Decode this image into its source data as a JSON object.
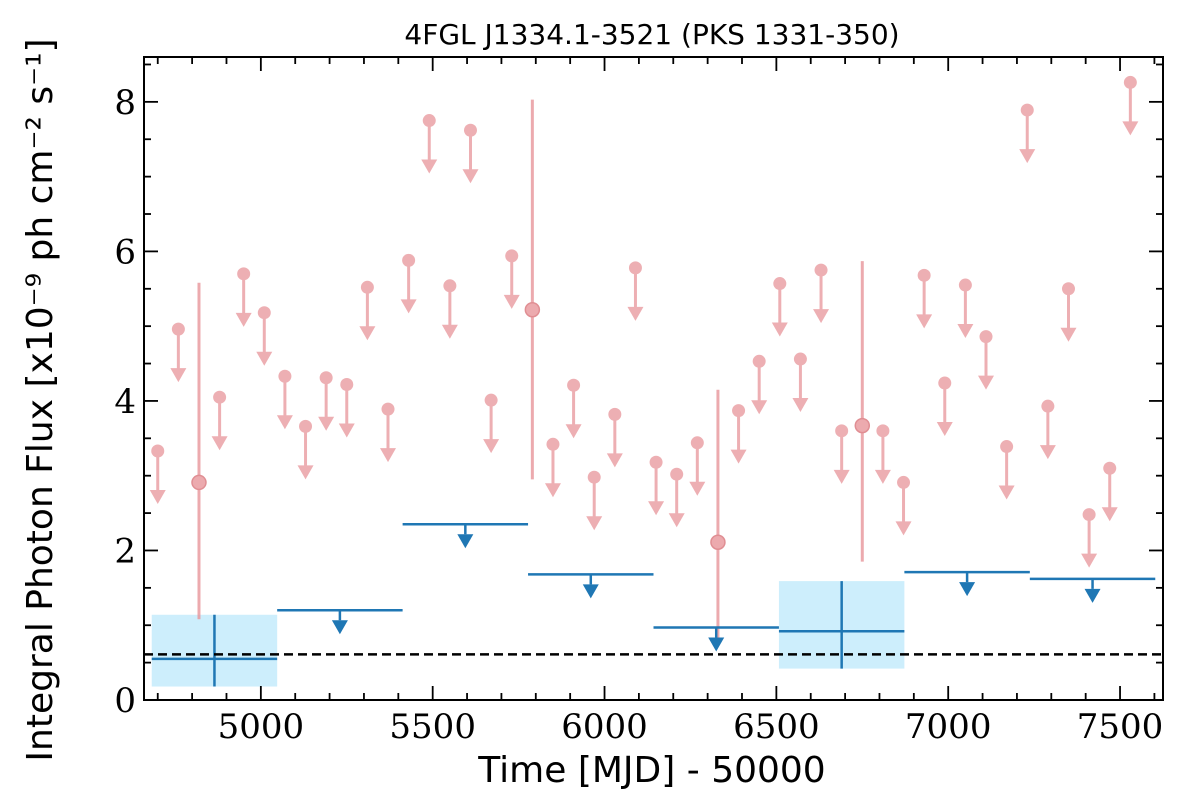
{
  "chart_data": {
    "type": "scatter",
    "title": "4FGL J1334.1-3521 (PKS 1331-350)",
    "xlabel": "Time [MJD] - 50000",
    "ylabel": "Integral Photon Flux [x10⁻⁹ ph cm⁻² s⁻¹]",
    "xlim": [
      4660,
      7625
    ],
    "ylim": [
      0,
      8.6
    ],
    "xticks": [
      5000,
      5500,
      6000,
      6500,
      7000,
      7500
    ],
    "yticks": [
      0,
      2,
      4,
      6,
      8
    ],
    "grid": false,
    "colors": {
      "short_bins": "#e8959a",
      "long_bins": "#1f77b4",
      "long_bins_fill": "#cdeefc",
      "reference_line": "#000000"
    },
    "reference_line": {
      "y": 0.61,
      "style": "dashed"
    },
    "series": [
      {
        "upper_limits": [
          [
            4700,
            3.33
          ],
          [
            4760,
            4.96
          ],
          [
            4880,
            4.05
          ],
          [
            4950,
            5.7
          ],
          [
            5010,
            5.18
          ],
          [
            5070,
            4.33
          ],
          [
            5130,
            3.66
          ],
          [
            5190,
            4.31
          ],
          [
            5250,
            4.22
          ],
          [
            5310,
            5.52
          ],
          [
            5370,
            3.89
          ],
          [
            5430,
            5.88
          ],
          [
            5490,
            7.75
          ],
          [
            5550,
            5.54
          ],
          [
            5610,
            7.62
          ],
          [
            5670,
            4.01
          ],
          [
            5730,
            5.94
          ],
          [
            5850,
            3.42
          ],
          [
            5910,
            4.21
          ],
          [
            5970,
            2.98
          ],
          [
            6030,
            3.82
          ],
          [
            6090,
            5.78
          ],
          [
            6150,
            3.18
          ],
          [
            6210,
            3.02
          ],
          [
            6270,
            3.44
          ],
          [
            6390,
            3.87
          ],
          [
            6450,
            4.53
          ],
          [
            6510,
            5.57
          ],
          [
            6570,
            4.56
          ],
          [
            6630,
            5.75
          ],
          [
            6690,
            3.6
          ],
          [
            6810,
            3.6
          ],
          [
            6870,
            2.91
          ],
          [
            6930,
            5.68
          ],
          [
            6990,
            4.24
          ],
          [
            7050,
            5.55
          ],
          [
            7110,
            4.86
          ],
          [
            7170,
            3.39
          ],
          [
            7230,
            7.89
          ],
          [
            7290,
            3.93
          ],
          [
            7350,
            5.5
          ],
          [
            7410,
            2.48
          ],
          [
            7470,
            3.1
          ],
          [
            7530,
            8.26
          ]
        ],
        "detections": [
          {
            "x": 4820,
            "y": 2.91,
            "ylow": 1.08,
            "yhigh": 5.58
          },
          {
            "x": 5790,
            "y": 5.22,
            "ylow": 2.95,
            "yhigh": 8.03
          },
          {
            "x": 6330,
            "y": 2.11,
            "ylow": 0.8,
            "yhigh": 4.15
          },
          {
            "x": 6750,
            "y": 3.67,
            "ylow": 1.85,
            "yhigh": 5.87
          }
        ]
      },
      {
        "bin_width": 365,
        "upper_limits": [
          [
            5230,
            1.2
          ],
          [
            5595,
            2.35
          ],
          [
            5960,
            1.68
          ],
          [
            6325,
            0.97
          ],
          [
            7055,
            1.71
          ],
          [
            7420,
            1.62
          ]
        ],
        "detections": [
          {
            "x": 4865,
            "y": 0.55,
            "ylow": 0.18,
            "yhigh": 1.14
          },
          {
            "x": 6690,
            "y": 0.92,
            "ylow": 0.42,
            "yhigh": 1.59
          }
        ]
      }
    ]
  }
}
